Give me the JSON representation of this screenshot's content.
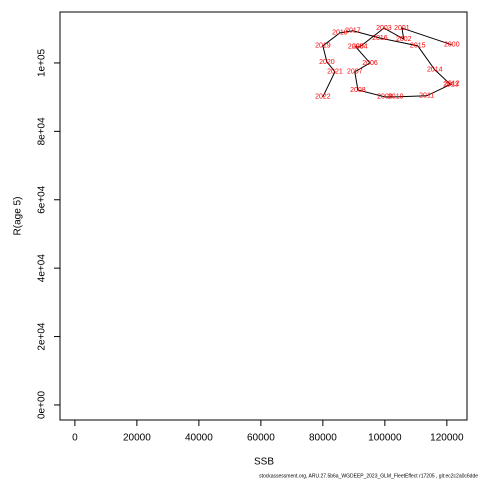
{
  "chart_data": {
    "type": "scatter",
    "xlabel": "SSB",
    "ylabel": "R(age 5)",
    "footer": "stockassessment.org, ARU.27.5b6a_WGDEEP_2023_GLM_FleetEffect r17205 , git:ec2c2a0c6dde",
    "labels": [
      "2000",
      "2001",
      "2002",
      "2003",
      "2004",
      "2005",
      "2006",
      "2007",
      "2008",
      "2009",
      "2010",
      "2011",
      "2012",
      "2013",
      "2014",
      "2015",
      "2016",
      "2017",
      "2018",
      "2019",
      "2020",
      "2021",
      "2022"
    ],
    "x": [
      121600,
      105500,
      106100,
      99700,
      91900,
      90600,
      95200,
      90300,
      91300,
      100000,
      103500,
      113500,
      121600,
      121300,
      116100,
      110600,
      98400,
      89700,
      85500,
      80000,
      81300,
      83900,
      80000
    ],
    "values": [
      105300,
      110200,
      107000,
      110200,
      104700,
      104700,
      100000,
      97400,
      92100,
      90100,
      90100,
      90400,
      93900,
      93600,
      98000,
      105000,
      107300,
      109400,
      108800,
      105000,
      100300,
      97400,
      90100
    ],
    "point_color": "#ff0000",
    "line_color": "#000000",
    "xlim": [
      -4800,
      126500
    ],
    "ylim": [
      -4400,
      114900
    ],
    "xticks": [
      0,
      20000,
      40000,
      60000,
      80000,
      100000,
      120000
    ],
    "yticks": [
      {
        "value": 0,
        "label": "0e+00"
      },
      {
        "value": 20000,
        "label": "2e+04"
      },
      {
        "value": 40000,
        "label": "4e+04"
      },
      {
        "value": 60000,
        "label": "6e+04"
      },
      {
        "value": 80000,
        "label": "8e+04"
      },
      {
        "value": 100000,
        "label": "1e+05"
      }
    ]
  }
}
